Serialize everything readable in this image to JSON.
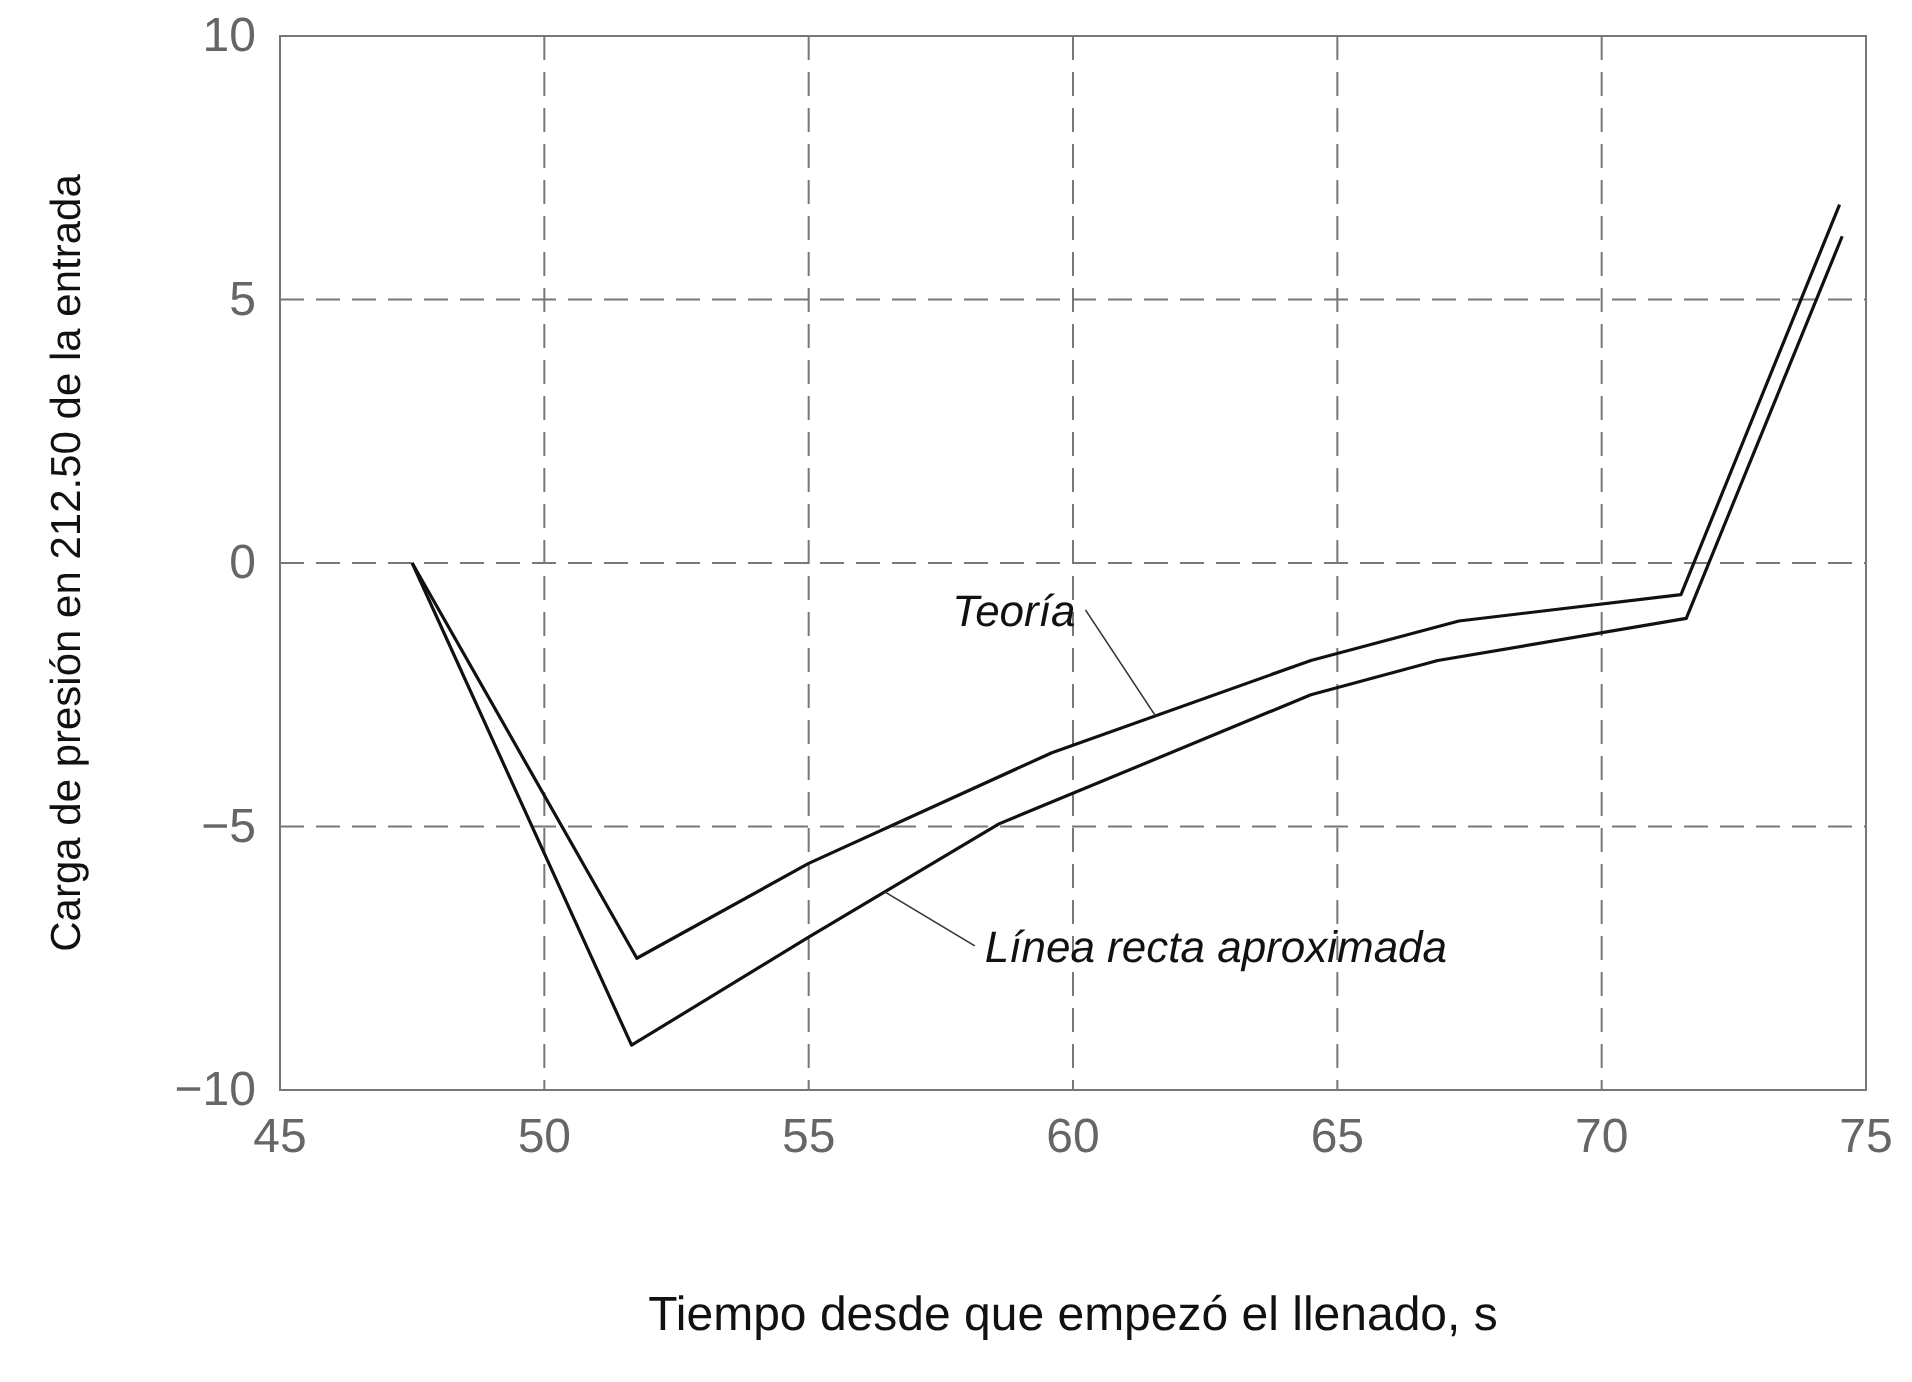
{
  "chart_data": {
    "type": "line",
    "xlabel": "Tiempo desde que empezó el llenado, s",
    "ylabel": "Carga de presión en 212.50 de la entrada",
    "xlim": [
      45,
      75
    ],
    "xticks": [
      45,
      50,
      55,
      60,
      65,
      70,
      75
    ],
    "ylim": [
      -10,
      10
    ],
    "yticks": [
      -10,
      -5,
      0,
      5,
      10
    ],
    "grid": true,
    "legend": false,
    "marker": "none",
    "line_style": "solid",
    "series": [
      {
        "name": "Teoría",
        "color": "#111111",
        "x": [
          47.5,
          51.75,
          55,
          59.6,
          64.5,
          67.3,
          71.5,
          74.5
        ],
        "values": [
          0,
          -7.5,
          -5.7,
          -3.6,
          -1.85,
          -1.1,
          -0.6,
          6.8
        ]
      },
      {
        "name": "Línea recta aproximada",
        "color": "#111111",
        "x": [
          47.5,
          51.65,
          55,
          58.6,
          64.5,
          66.9,
          71.6,
          74.55
        ],
        "values": [
          0,
          -9.15,
          -7.1,
          -4.95,
          -2.5,
          -1.85,
          -1.05,
          6.2
        ]
      }
    ]
  }
}
